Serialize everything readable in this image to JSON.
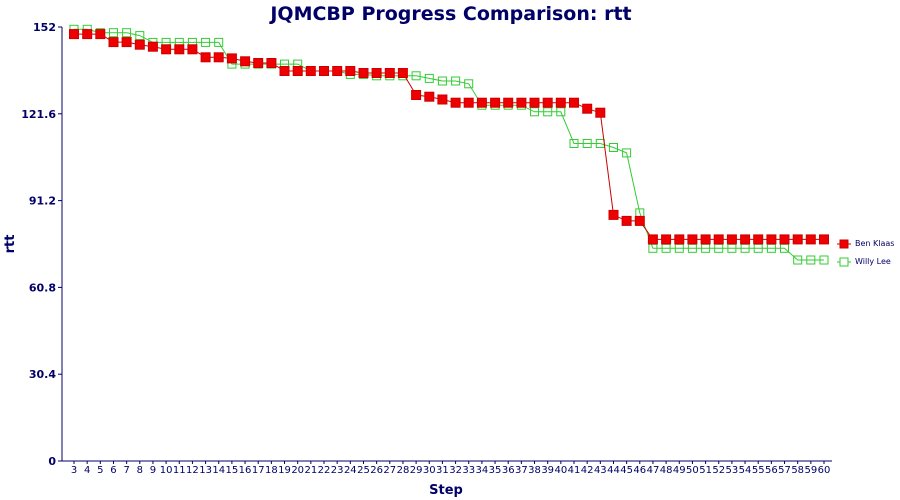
{
  "chart_data": {
    "type": "line",
    "title": "JQMCBP Progress Comparison: rtt",
    "xlabel": "Step",
    "ylabel": "rtt",
    "ylim": [
      0,
      152
    ],
    "yticks": [
      "0",
      "30.4",
      "60.8",
      "91.2",
      "121.6",
      "152"
    ],
    "x": [
      3,
      4,
      5,
      6,
      7,
      8,
      9,
      10,
      11,
      12,
      13,
      14,
      15,
      16,
      17,
      18,
      19,
      20,
      21,
      22,
      23,
      24,
      25,
      26,
      27,
      28,
      29,
      30,
      31,
      32,
      33,
      34,
      35,
      36,
      37,
      38,
      39,
      40,
      41,
      42,
      43,
      44,
      45,
      46,
      47,
      48,
      49,
      50,
      51,
      52,
      53,
      54,
      55,
      56,
      57,
      58,
      59,
      60
    ],
    "legend_position": "right",
    "grid": false,
    "series": [
      {
        "name": "Ben Klaas",
        "color": "#ee0000",
        "marker": "filled-square",
        "values": [
          149.5,
          149.5,
          149.5,
          146.7,
          146.7,
          145.8,
          145.1,
          144.2,
          144.2,
          144.2,
          141.4,
          141.4,
          141.0,
          140.0,
          139.4,
          139.4,
          136.6,
          136.6,
          136.6,
          136.6,
          136.6,
          136.6,
          135.9,
          135.9,
          135.9,
          135.9,
          128.2,
          127.6,
          126.6,
          125.5,
          125.5,
          125.5,
          125.5,
          125.5,
          125.5,
          125.5,
          125.5,
          125.5,
          125.5,
          123.4,
          122.0,
          86.2,
          84.1,
          84.1,
          77.6,
          77.6,
          77.6,
          77.6,
          77.6,
          77.6,
          77.6,
          77.6,
          77.6,
          77.6,
          77.6,
          77.6,
          77.6,
          77.6
        ]
      },
      {
        "name": "Willy Lee",
        "color": "#33cc33",
        "marker": "hollow-square",
        "values": [
          151.2,
          151.2,
          150.0,
          150.0,
          150.0,
          149.0,
          146.6,
          146.6,
          146.6,
          146.6,
          146.6,
          146.6,
          139.0,
          139.0,
          139.0,
          139.0,
          139.0,
          139.0,
          136.6,
          136.6,
          136.6,
          135.4,
          135.4,
          134.9,
          134.9,
          134.9,
          134.9,
          134.0,
          133.1,
          133.1,
          132.1,
          124.6,
          124.6,
          124.6,
          124.6,
          122.3,
          122.3,
          122.3,
          111.2,
          111.2,
          111.2,
          109.8,
          107.9,
          86.9,
          74.5,
          74.5,
          74.5,
          74.5,
          74.5,
          74.5,
          74.5,
          74.5,
          74.5,
          74.5,
          74.5,
          70.4,
          70.4,
          70.4
        ]
      }
    ]
  }
}
